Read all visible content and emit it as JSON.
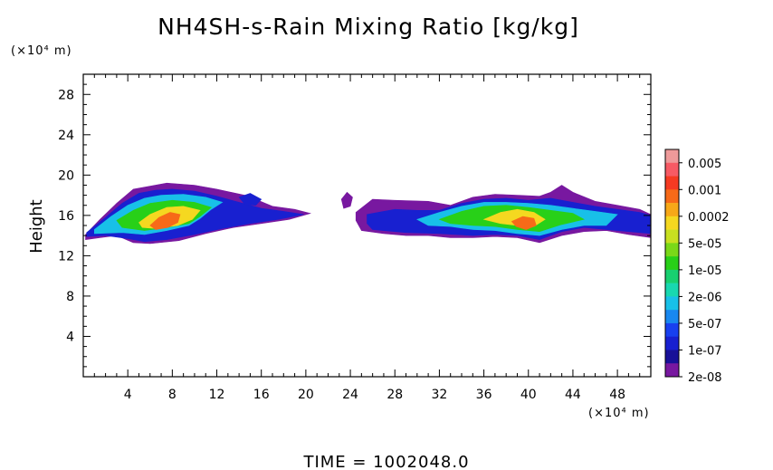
{
  "chart_data": {
    "type": "heatmap",
    "title": "NH4SH-s-Rain Mixing Ratio [kg/kg]",
    "ylabel": "Height",
    "y_unit": "(×10⁴ m)",
    "x_unit": "(×10⁴ m)",
    "footer": "TIME = 1002048.0",
    "xlim": [
      0,
      51
    ],
    "ylim": [
      0,
      30
    ],
    "x_ticks": [
      4,
      8,
      12,
      16,
      20,
      24,
      28,
      32,
      36,
      40,
      44,
      48
    ],
    "y_ticks": [
      4,
      8,
      12,
      16,
      20,
      24,
      28
    ],
    "colorbar": {
      "labels": [
        "0.005",
        "0.001",
        "0.0002",
        "5e-05",
        "1e-05",
        "2e-06",
        "5e-07",
        "1e-07",
        "2e-08"
      ],
      "colors": [
        "#ee9a9a",
        "#f75a64",
        "#f53a22",
        "#f76a18",
        "#f7a818",
        "#f5d820",
        "#c8e020",
        "#7ad818",
        "#28d018",
        "#18d070",
        "#18d8b0",
        "#18c0e8",
        "#1888f0",
        "#1840f0",
        "#1820d0",
        "#181098",
        "#7818a0"
      ]
    },
    "regions": [
      {
        "name": "west cloud envelope (2e-08)",
        "level": 16,
        "points": [
          [
            0.2,
            14.1
          ],
          [
            1.5,
            15.6
          ],
          [
            3,
            17.2
          ],
          [
            4.5,
            18.6
          ],
          [
            6,
            18.9
          ],
          [
            7.5,
            19.2
          ],
          [
            10,
            19.0
          ],
          [
            12,
            18.6
          ],
          [
            14.5,
            18.0
          ],
          [
            15.5,
            17.6
          ],
          [
            17,
            16.9
          ],
          [
            19,
            16.6
          ],
          [
            20.4,
            16.2
          ],
          [
            18.5,
            15.6
          ],
          [
            16,
            15.2
          ],
          [
            13.5,
            14.8
          ],
          [
            11,
            14.2
          ],
          [
            8.6,
            13.5
          ],
          [
            6,
            13.2
          ],
          [
            4.5,
            13.3
          ],
          [
            3,
            14.0
          ],
          [
            1.5,
            13.8
          ],
          [
            0.2,
            13.6
          ]
        ]
      },
      {
        "name": "west blue layer",
        "level": 14,
        "points": [
          [
            0.3,
            14.3
          ],
          [
            2,
            15.8
          ],
          [
            3.5,
            17.2
          ],
          [
            5,
            18.2
          ],
          [
            6.5,
            18.5
          ],
          [
            8,
            18.6
          ],
          [
            10,
            18.4
          ],
          [
            12,
            17.9
          ],
          [
            14,
            17.3
          ],
          [
            16,
            16.7
          ],
          [
            18,
            16.4
          ],
          [
            19.8,
            16.1
          ],
          [
            17.5,
            15.6
          ],
          [
            15,
            15.2
          ],
          [
            12.5,
            14.7
          ],
          [
            10,
            14.1
          ],
          [
            7.5,
            13.6
          ],
          [
            5.5,
            13.4
          ],
          [
            4,
            13.7
          ],
          [
            2,
            14.0
          ],
          [
            0.3,
            13.9
          ]
        ]
      },
      {
        "name": "west cyan layer",
        "level": 11,
        "points": [
          [
            1,
            14.6
          ],
          [
            2.5,
            15.9
          ],
          [
            4,
            17.0
          ],
          [
            5.5,
            17.7
          ],
          [
            7,
            18.0
          ],
          [
            9,
            18.1
          ],
          [
            11,
            17.8
          ],
          [
            12.5,
            17.3
          ],
          [
            11.5,
            16.6
          ],
          [
            10.5,
            15.7
          ],
          [
            9.5,
            15.0
          ],
          [
            7.5,
            14.5
          ],
          [
            5.5,
            14.1
          ],
          [
            3.5,
            14.3
          ],
          [
            1,
            14.2
          ]
        ]
      },
      {
        "name": "west green layer",
        "level": 8,
        "points": [
          [
            3,
            15.5
          ],
          [
            4.5,
            16.5
          ],
          [
            6,
            17.2
          ],
          [
            8,
            17.5
          ],
          [
            10,
            17.3
          ],
          [
            11.5,
            16.8
          ],
          [
            10.5,
            15.9
          ],
          [
            9.5,
            15.2
          ],
          [
            7.5,
            14.8
          ],
          [
            5.5,
            14.5
          ],
          [
            3.5,
            14.8
          ]
        ]
      },
      {
        "name": "west yellow layer",
        "level": 5,
        "points": [
          [
            5,
            15.3
          ],
          [
            6,
            16.1
          ],
          [
            7.5,
            16.8
          ],
          [
            9,
            16.9
          ],
          [
            10.5,
            16.5
          ],
          [
            9.8,
            15.6
          ],
          [
            8.5,
            15.0
          ],
          [
            6.5,
            14.7
          ],
          [
            5.3,
            14.8
          ]
        ]
      },
      {
        "name": "west orange core",
        "level": 3,
        "points": [
          [
            6,
            15.0
          ],
          [
            6.8,
            15.8
          ],
          [
            7.8,
            16.3
          ],
          [
            8.7,
            16.1
          ],
          [
            8.5,
            15.3
          ],
          [
            7.6,
            14.8
          ],
          [
            6.5,
            14.6
          ]
        ]
      },
      {
        "name": "detached east edge puffs",
        "level": 14,
        "points": [
          [
            14,
            17.8
          ],
          [
            15,
            18.2
          ],
          [
            16,
            17.6
          ],
          [
            15.5,
            17.0
          ],
          [
            14.5,
            17.1
          ]
        ]
      },
      {
        "name": "isolated purple puff",
        "level": 16,
        "points": [
          [
            23.2,
            17.6
          ],
          [
            23.7,
            18.3
          ],
          [
            24.2,
            17.8
          ],
          [
            24.0,
            16.9
          ],
          [
            23.4,
            16.7
          ]
        ]
      },
      {
        "name": "east cloud envelope (2e-08)",
        "level": 16,
        "points": [
          [
            24.5,
            16.3
          ],
          [
            26,
            17.6
          ],
          [
            28,
            17.5
          ],
          [
            31,
            17.4
          ],
          [
            33,
            17.0
          ],
          [
            35,
            17.8
          ],
          [
            37,
            18.1
          ],
          [
            39,
            18.0
          ],
          [
            41,
            17.9
          ],
          [
            42,
            18.3
          ],
          [
            43,
            19.0
          ],
          [
            44,
            18.3
          ],
          [
            46,
            17.4
          ],
          [
            48,
            17.0
          ],
          [
            50,
            16.6
          ],
          [
            51,
            16.1
          ],
          [
            51,
            13.8
          ],
          [
            49,
            14.1
          ],
          [
            47,
            14.5
          ],
          [
            45,
            14.4
          ],
          [
            43,
            14.0
          ],
          [
            41,
            13.3
          ],
          [
            39,
            13.8
          ],
          [
            37,
            13.9
          ],
          [
            35,
            13.8
          ],
          [
            33,
            13.8
          ],
          [
            31,
            14.0
          ],
          [
            29,
            14.0
          ],
          [
            27,
            14.2
          ],
          [
            25,
            14.5
          ],
          [
            24.5,
            15.5
          ]
        ]
      },
      {
        "name": "east blue layer",
        "level": 14,
        "points": [
          [
            25.5,
            16.1
          ],
          [
            28,
            16.6
          ],
          [
            30,
            16.5
          ],
          [
            32,
            16.5
          ],
          [
            34,
            17.2
          ],
          [
            36,
            17.6
          ],
          [
            38,
            17.7
          ],
          [
            40,
            17.5
          ],
          [
            42,
            17.7
          ],
          [
            44,
            17.3
          ],
          [
            46,
            16.9
          ],
          [
            48,
            16.6
          ],
          [
            50,
            16.3
          ],
          [
            51,
            16.0
          ],
          [
            51,
            14.2
          ],
          [
            48,
            14.5
          ],
          [
            45,
            14.8
          ],
          [
            43,
            14.4
          ],
          [
            41,
            13.6
          ],
          [
            39,
            14.0
          ],
          [
            37,
            14.1
          ],
          [
            35,
            14.0
          ],
          [
            32,
            14.2
          ],
          [
            29,
            14.3
          ],
          [
            26,
            14.6
          ],
          [
            25.5,
            15.2
          ]
        ]
      },
      {
        "name": "east cyan layer",
        "level": 11,
        "points": [
          [
            30,
            15.6
          ],
          [
            32,
            16.3
          ],
          [
            34,
            16.9
          ],
          [
            36,
            17.3
          ],
          [
            38,
            17.3
          ],
          [
            40,
            17.2
          ],
          [
            42,
            17.0
          ],
          [
            44,
            16.7
          ],
          [
            46,
            16.4
          ],
          [
            48,
            16.1
          ],
          [
            47,
            15.0
          ],
          [
            45,
            15.0
          ],
          [
            43,
            14.6
          ],
          [
            41,
            14.0
          ],
          [
            39,
            14.2
          ],
          [
            37,
            14.5
          ],
          [
            35,
            14.6
          ],
          [
            33,
            14.9
          ],
          [
            31,
            15.0
          ]
        ]
      },
      {
        "name": "east green layer",
        "level": 8,
        "points": [
          [
            32,
            15.6
          ],
          [
            34,
            16.4
          ],
          [
            36,
            16.9
          ],
          [
            38,
            17.0
          ],
          [
            40,
            16.8
          ],
          [
            42,
            16.5
          ],
          [
            44,
            16.2
          ],
          [
            45,
            15.6
          ],
          [
            43,
            15.1
          ],
          [
            41,
            14.4
          ],
          [
            39,
            14.6
          ],
          [
            37,
            14.9
          ],
          [
            35,
            15.0
          ],
          [
            33,
            15.2
          ]
        ]
      },
      {
        "name": "east yellow layer",
        "level": 5,
        "points": [
          [
            36,
            15.6
          ],
          [
            37.5,
            16.3
          ],
          [
            39,
            16.6
          ],
          [
            40.5,
            16.3
          ],
          [
            41.5,
            15.6
          ],
          [
            40.5,
            14.9
          ],
          [
            39,
            15.0
          ],
          [
            37.5,
            15.2
          ]
        ]
      },
      {
        "name": "east orange core",
        "level": 3,
        "points": [
          [
            38.5,
            15.4
          ],
          [
            39.5,
            15.9
          ],
          [
            40.5,
            15.7
          ],
          [
            40.7,
            15.0
          ],
          [
            39.8,
            14.6
          ],
          [
            38.9,
            14.9
          ]
        ]
      }
    ]
  }
}
